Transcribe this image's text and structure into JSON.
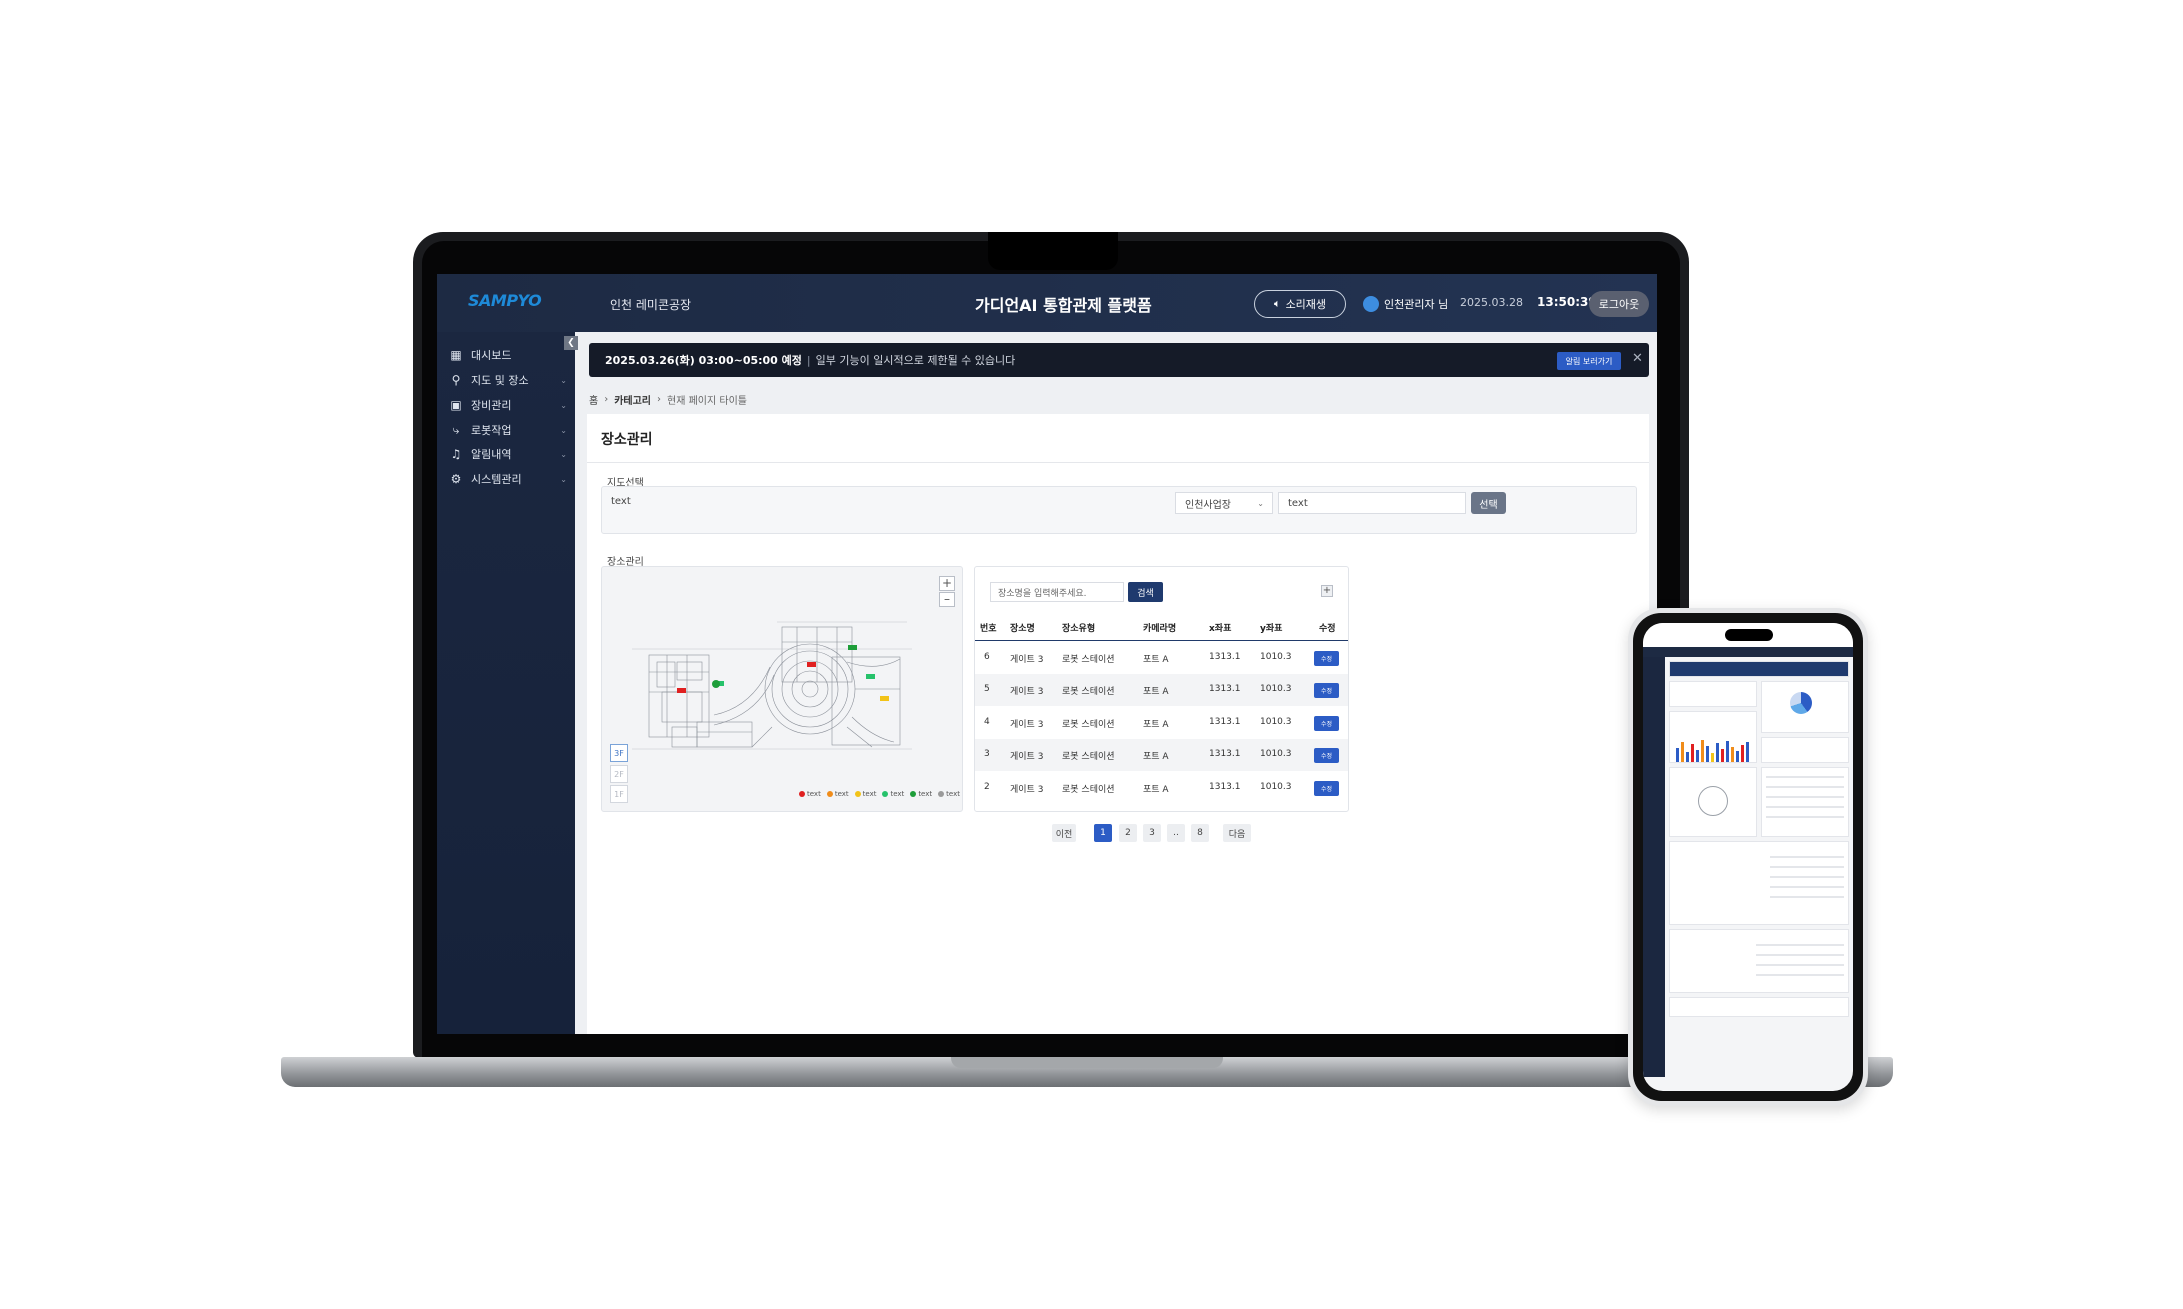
{
  "brand": {
    "logo": "SAMPYO",
    "accent": "#1e8ad8",
    "header_bg": "#1d2a43",
    "primary": "#2c5cc5"
  },
  "header": {
    "site": "인천 레미콘공장",
    "title": "가디언AI 통합관제 플랫폼",
    "sound_button": "소리재생",
    "user": "인천관리자 님",
    "date": "2025.03.28",
    "time": "13:50:39",
    "logout": "로그아웃"
  },
  "sidebar": {
    "items": [
      {
        "label": "대시보드",
        "icon": "grid-icon"
      },
      {
        "label": "지도 및 장소",
        "icon": "pin-icon"
      },
      {
        "label": "장비관리",
        "icon": "camera-icon"
      },
      {
        "label": "로봇작업",
        "icon": "robot-arm-icon"
      },
      {
        "label": "알림내역",
        "icon": "bell-icon"
      },
      {
        "label": "시스템관리",
        "icon": "gear-icon"
      }
    ]
  },
  "notice": {
    "strong": "2025.03.26(화) 03:00~05:00 예정",
    "separator": "|",
    "text": "일부 기능이 일시적으로 제한될 수 있습니다",
    "button": "알림 보러가기"
  },
  "breadcrumb": {
    "home": "홈",
    "category": "카테고리",
    "current": "현재 페이지 타이틀"
  },
  "page": {
    "title": "장소관리",
    "map_select_label": "지도선택",
    "map_select_text": "text",
    "dropdown_value": "인천사업장",
    "map_input_value": "text",
    "select_button": "선택",
    "place_section_label": "장소관리"
  },
  "map": {
    "floors": [
      "3F",
      "2F",
      "1F"
    ],
    "active_floor": "3F",
    "legend": [
      {
        "label": "text",
        "color": "#e02020"
      },
      {
        "label": "text",
        "color": "#f08c1a"
      },
      {
        "label": "text",
        "color": "#f2c318"
      },
      {
        "label": "text",
        "color": "#26c26b"
      },
      {
        "label": "text",
        "color": "#1e9e3a"
      },
      {
        "label": "text",
        "color": "#9a9a9a"
      }
    ]
  },
  "table": {
    "search_placeholder": "장소명을 입력해주세요.",
    "search_button": "검색",
    "add_button": "+",
    "headers": [
      "번호",
      "장소명",
      "장소유형",
      "카메라명",
      "x좌표",
      "y좌표",
      "수정"
    ],
    "rows": [
      {
        "no": "6",
        "name": "게이트 3",
        "type": "로봇 스테이션",
        "camera": "포트 A",
        "x": "1313.1",
        "y": "1010.3",
        "edit": "수정"
      },
      {
        "no": "5",
        "name": "게이트 3",
        "type": "로봇 스테이션",
        "camera": "포트 A",
        "x": "1313.1",
        "y": "1010.3",
        "edit": "수정"
      },
      {
        "no": "4",
        "name": "게이트 3",
        "type": "로봇 스테이션",
        "camera": "포트 A",
        "x": "1313.1",
        "y": "1010.3",
        "edit": "수정"
      },
      {
        "no": "3",
        "name": "게이트 3",
        "type": "로봇 스테이션",
        "camera": "포트 A",
        "x": "1313.1",
        "y": "1010.3",
        "edit": "수정"
      },
      {
        "no": "2",
        "name": "게이트 3",
        "type": "로봇 스테이션",
        "camera": "포트 A",
        "x": "1313.1",
        "y": "1010.3",
        "edit": "수정"
      }
    ]
  },
  "pagination": {
    "prev": "이전",
    "pages": [
      "1",
      "2",
      "3",
      "..",
      "8"
    ],
    "active": "1",
    "next": "다음"
  }
}
